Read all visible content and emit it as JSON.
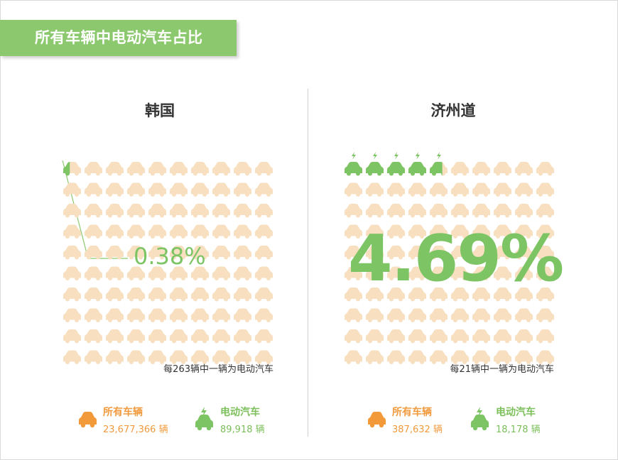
{
  "header": {
    "title": "所有车辆中电动汽车占比"
  },
  "colors": {
    "ev": "#7cc464",
    "car": "#f7dfc0",
    "total_icon": "#f2993a",
    "accent_green": "#8cc96e"
  },
  "chart_data": [
    {
      "type": "pictogram",
      "title": "韩国",
      "percentage_label": "0.38%",
      "percentage": 0.38,
      "note": "每263辆中一辆为电动汽车",
      "legend": {
        "total_label": "所有车辆",
        "total_value": "23,677,366 辆",
        "ev_label": "电动汽车",
        "ev_value": "89,918 辆"
      }
    },
    {
      "type": "pictogram",
      "title": "济州道",
      "percentage_label": "4.69%",
      "percentage": 4.69,
      "note": "每21辆中一辆为电动汽车",
      "legend": {
        "total_label": "所有车辆",
        "total_value": "387,632 辆",
        "ev_label": "电动汽车",
        "ev_value": "18,178 辆"
      }
    }
  ]
}
